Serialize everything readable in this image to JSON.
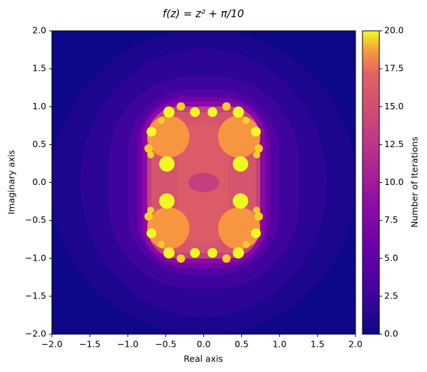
{
  "chart_data": {
    "type": "heatmap",
    "title": "f(z) = z² + π/10",
    "x_label": "Real axis",
    "y_label": "Imaginary axis",
    "xlim": [
      -2,
      2
    ],
    "ylim": [
      -2,
      2
    ],
    "xticks": [
      {
        "value": -2,
        "label": "−2.0"
      },
      {
        "value": -1.5,
        "label": "−1.5"
      },
      {
        "value": -1,
        "label": "−1.0"
      },
      {
        "value": -0.5,
        "label": "−0.5"
      },
      {
        "value": 0,
        "label": "0.0"
      },
      {
        "value": 0.5,
        "label": "0.5"
      },
      {
        "value": 1,
        "label": "1.0"
      },
      {
        "value": 1.5,
        "label": "1.5"
      },
      {
        "value": 2,
        "label": "2.0"
      }
    ],
    "yticks": [
      {
        "value": -2,
        "label": "−2.0"
      },
      {
        "value": -1.5,
        "label": "−1.5"
      },
      {
        "value": -1,
        "label": "−1.0"
      },
      {
        "value": -0.5,
        "label": "−0.5"
      },
      {
        "value": 0,
        "label": "0.0"
      },
      {
        "value": 0.5,
        "label": "0.5"
      },
      {
        "value": 1,
        "label": "1.0"
      },
      {
        "value": 1.5,
        "label": "1.5"
      },
      {
        "value": 2,
        "label": "2.0"
      }
    ],
    "colorbar_label": "Number of Iterations",
    "clim": [
      0,
      20
    ],
    "cticks": [
      {
        "value": 0,
        "label": "0.0"
      },
      2.5,
      {
        "value": 5,
        "label": "5.0"
      },
      7.5,
      {
        "value": 10,
        "label": "10.0"
      },
      12.5,
      {
        "value": 15,
        "label": "15.0"
      },
      17.5,
      {
        "value": 20,
        "label": "20.0"
      }
    ]
  }
}
